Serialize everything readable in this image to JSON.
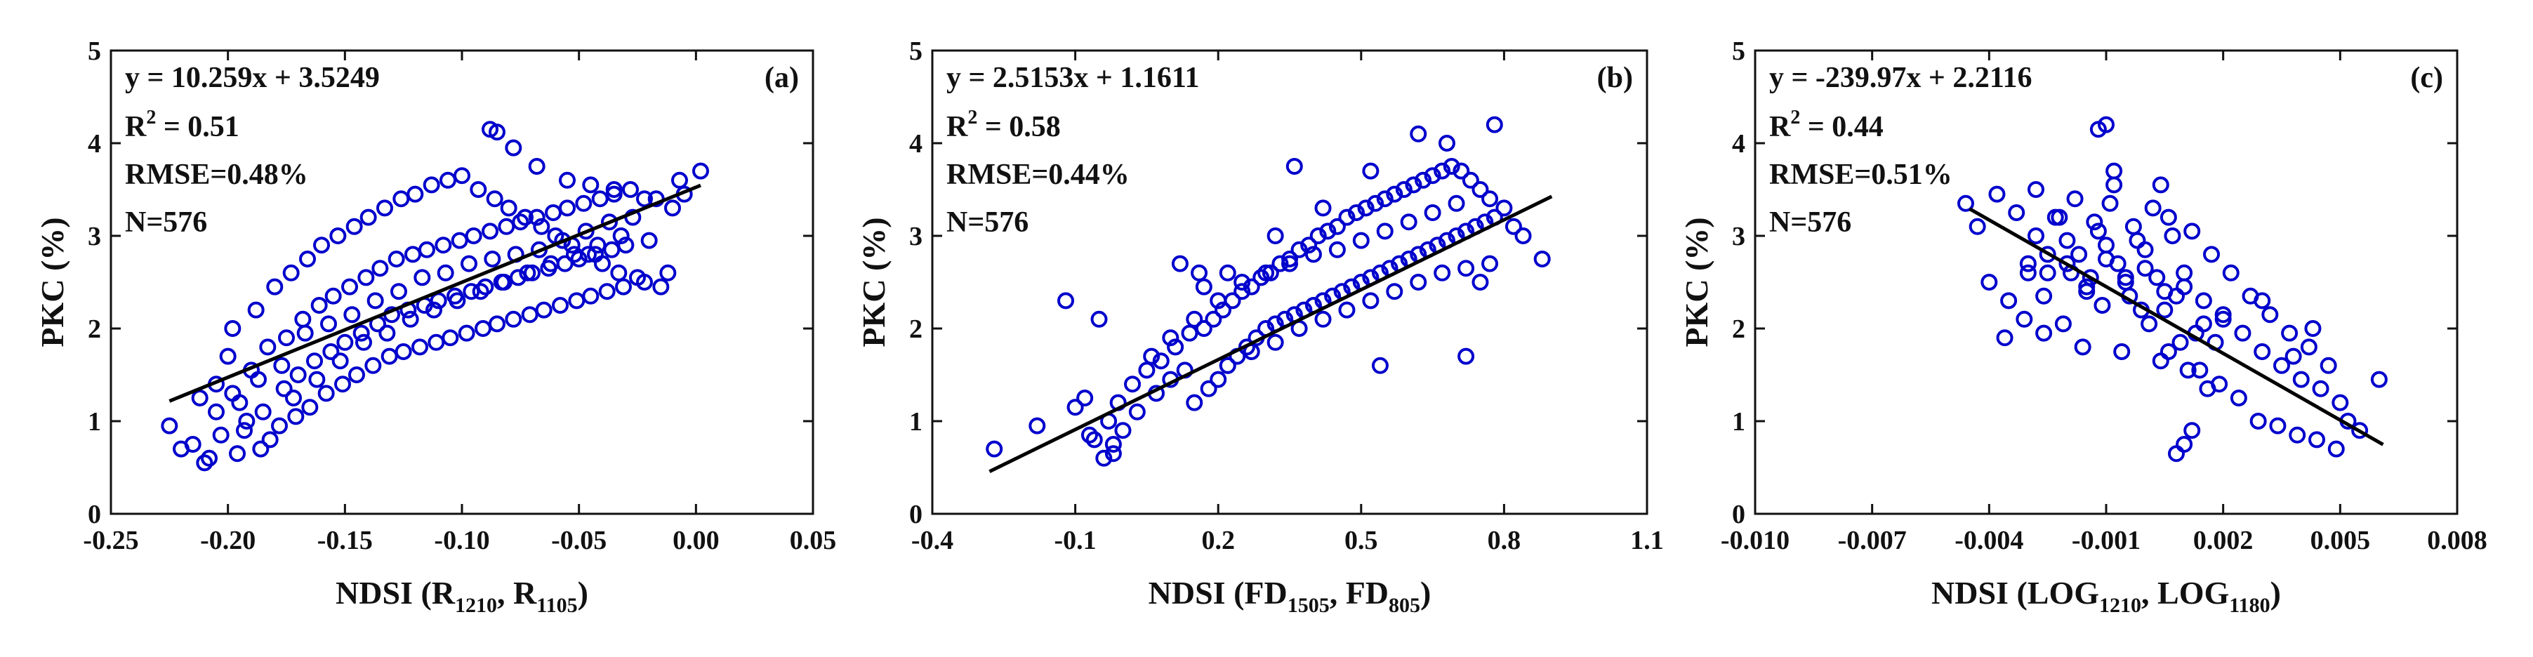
{
  "chart_data": [
    {
      "type": "scatter",
      "panel_label": "(a)",
      "xlabel": {
        "base": "NDSI (R",
        "sub1": "1210",
        "mid": ", R",
        "sub2": "1105",
        "end": ")"
      },
      "ylabel": "PKC (%)",
      "xlim": [
        -0.25,
        0.05
      ],
      "ylim": [
        0,
        5
      ],
      "xticks": [
        -0.25,
        -0.2,
        -0.15,
        -0.1,
        -0.05,
        0.0,
        0.05
      ],
      "xticklabels": [
        "-0.25",
        "-0.20",
        "-0.15",
        "-0.10",
        "-0.05",
        "0.00",
        "0.05"
      ],
      "yticks": [
        0,
        1,
        2,
        3,
        4,
        5
      ],
      "yticklabels": [
        "0",
        "1",
        "2",
        "3",
        "4",
        "5"
      ],
      "annotations": {
        "equation": "y = 10.259x + 3.5249",
        "r2_base": "R",
        "r2_sup": "2",
        "r2_value": " = 0.51",
        "rmse": "RMSE=0.48%",
        "n": "N=576"
      },
      "fit": {
        "slope": 10.259,
        "intercept": 3.5249,
        "x_range": [
          -0.225,
          0.002
        ]
      },
      "series": [
        {
          "marker": "open-circle",
          "color": "#0000cc",
          "x": [
            -0.225,
            -0.22,
            -0.215,
            -0.212,
            -0.21,
            -0.208,
            -0.205,
            -0.203,
            -0.2,
            -0.198,
            -0.196,
            -0.195,
            -0.193,
            -0.19,
            -0.188,
            -0.186,
            -0.185,
            -0.183,
            -0.18,
            -0.178,
            -0.176,
            -0.175,
            -0.173,
            -0.171,
            -0.17,
            -0.168,
            -0.166,
            -0.165,
            -0.163,
            -0.161,
            -0.16,
            -0.158,
            -0.156,
            -0.155,
            -0.153,
            -0.151,
            -0.15,
            -0.148,
            -0.146,
            -0.145,
            -0.143,
            -0.141,
            -0.14,
            -0.138,
            -0.136,
            -0.135,
            -0.133,
            -0.131,
            -0.13,
            -0.128,
            -0.126,
            -0.125,
            -0.123,
            -0.121,
            -0.12,
            -0.118,
            -0.116,
            -0.115,
            -0.113,
            -0.111,
            -0.11,
            -0.108,
            -0.106,
            -0.105,
            -0.103,
            -0.101,
            -0.1,
            -0.098,
            -0.096,
            -0.095,
            -0.093,
            -0.091,
            -0.09,
            -0.088,
            -0.086,
            -0.085,
            -0.083,
            -0.081,
            -0.08,
            -0.078,
            -0.076,
            -0.075,
            -0.073,
            -0.071,
            -0.07,
            -0.068,
            -0.066,
            -0.065,
            -0.063,
            -0.061,
            -0.06,
            -0.058,
            -0.056,
            -0.055,
            -0.053,
            -0.051,
            -0.05,
            -0.048,
            -0.046,
            -0.045,
            -0.043,
            -0.041,
            -0.04,
            -0.038,
            -0.036,
            -0.035,
            -0.033,
            -0.031,
            -0.03,
            -0.028,
            -0.025,
            -0.022,
            -0.02,
            -0.017,
            -0.015,
            -0.012,
            -0.01,
            -0.007,
            -0.005,
            0.002,
            -0.205,
            -0.198,
            -0.192,
            -0.187,
            -0.182,
            -0.177,
            -0.172,
            -0.167,
            -0.162,
            -0.157,
            -0.152,
            -0.147,
            -0.142,
            -0.137,
            -0.132,
            -0.127,
            -0.122,
            -0.117,
            -0.112,
            -0.107,
            -0.102,
            -0.097,
            -0.092,
            -0.087,
            -0.082,
            -0.077,
            -0.072,
            -0.067,
            -0.062,
            -0.057,
            -0.052,
            -0.047,
            -0.042,
            -0.037,
            -0.032,
            -0.027,
            -0.088,
            -0.085,
            -0.078,
            -0.068,
            -0.055,
            -0.045,
            -0.035,
            -0.022
          ],
          "y": [
            0.95,
            0.7,
            0.75,
            1.25,
            0.55,
            0.6,
            1.4,
            0.85,
            1.7,
            2.0,
            0.65,
            1.2,
            0.9,
            1.55,
            2.2,
            0.7,
            1.1,
            1.8,
            2.45,
            0.95,
            1.35,
            1.9,
            2.6,
            1.05,
            1.5,
            2.1,
            2.75,
            1.15,
            1.65,
            2.25,
            2.9,
            1.3,
            1.75,
            2.35,
            3.0,
            1.4,
            1.85,
            2.45,
            3.1,
            1.5,
            1.95,
            2.55,
            3.2,
            1.6,
            2.05,
            2.65,
            3.3,
            1.7,
            2.15,
            2.75,
            3.4,
            1.75,
            2.2,
            2.8,
            3.45,
            1.8,
            2.25,
            2.85,
            3.55,
            1.85,
            2.3,
            2.9,
            3.6,
            1.9,
            2.35,
            2.95,
            3.65,
            1.95,
            2.4,
            3.0,
            3.5,
            2.0,
            2.45,
            3.05,
            3.4,
            2.05,
            2.5,
            3.1,
            3.3,
            2.1,
            2.55,
            3.15,
            3.2,
            2.15,
            2.6,
            3.2,
            3.1,
            2.2,
            2.65,
            3.25,
            3.0,
            2.25,
            2.7,
            3.3,
            2.9,
            2.3,
            2.75,
            3.35,
            2.8,
            2.35,
            2.8,
            3.4,
            2.7,
            2.4,
            2.85,
            3.45,
            2.6,
            2.45,
            2.9,
            3.5,
            2.55,
            2.5,
            2.95,
            3.4,
            2.45,
            2.6,
            3.3,
            3.6,
            3.45,
            3.7,
            1.1,
            1.3,
            1.0,
            1.45,
            0.8,
            1.6,
            1.25,
            1.95,
            1.45,
            2.05,
            1.65,
            2.15,
            1.85,
            2.3,
            1.95,
            2.4,
            2.1,
            2.55,
            2.2,
            2.6,
            2.3,
            2.7,
            2.4,
            2.75,
            2.5,
            2.8,
            2.6,
            2.85,
            2.7,
            2.95,
            2.8,
            3.05,
            2.9,
            3.15,
            3.0,
            3.2,
            4.15,
            4.12,
            3.95,
            3.75,
            3.6,
            3.55,
            3.5,
            3.4
          ]
        }
      ]
    },
    {
      "type": "scatter",
      "panel_label": "(b)",
      "xlabel": {
        "base": "NDSI (FD",
        "sub1": "1505",
        "mid": ", FD",
        "sub2": "805",
        "end": ")"
      },
      "ylabel": "PKC (%)",
      "xlim": [
        -0.4,
        1.1
      ],
      "ylim": [
        0,
        5
      ],
      "xticks": [
        -0.4,
        -0.1,
        0.2,
        0.5,
        0.8,
        1.1
      ],
      "xticklabels": [
        "-0.4",
        "-0.1",
        "0.2",
        "0.5",
        "0.8",
        "1.1"
      ],
      "yticks": [
        0,
        1,
        2,
        3,
        4,
        5
      ],
      "yticklabels": [
        "0",
        "1",
        "2",
        "3",
        "4",
        "5"
      ],
      "annotations": {
        "equation": "y = 2.5153x + 1.1611",
        "r2_base": "R",
        "r2_sup": "2",
        "r2_value": " = 0.58",
        "rmse": "RMSE=0.44%",
        "n": "N=576"
      },
      "fit": {
        "slope": 2.5153,
        "intercept": 1.1611,
        "x_range": [
          -0.28,
          0.9
        ]
      },
      "series": [
        {
          "marker": "open-circle",
          "color": "#0000cc",
          "x": [
            -0.27,
            -0.18,
            -0.12,
            -0.1,
            -0.08,
            -0.06,
            -0.05,
            -0.04,
            -0.03,
            -0.02,
            -0.01,
            0.0,
            0.02,
            0.03,
            0.05,
            0.07,
            0.08,
            0.1,
            0.11,
            0.13,
            0.14,
            0.15,
            0.17,
            0.18,
            0.19,
            0.2,
            0.21,
            0.22,
            0.23,
            0.24,
            0.25,
            0.26,
            0.27,
            0.28,
            0.29,
            0.3,
            0.31,
            0.32,
            0.33,
            0.34,
            0.35,
            0.36,
            0.37,
            0.38,
            0.39,
            0.4,
            0.41,
            0.42,
            0.43,
            0.44,
            0.45,
            0.46,
            0.47,
            0.48,
            0.49,
            0.5,
            0.51,
            0.52,
            0.53,
            0.54,
            0.55,
            0.56,
            0.57,
            0.58,
            0.59,
            0.6,
            0.61,
            0.62,
            0.63,
            0.64,
            0.65,
            0.66,
            0.67,
            0.68,
            0.69,
            0.7,
            0.71,
            0.72,
            0.73,
            0.74,
            0.75,
            0.76,
            0.77,
            0.78,
            0.8,
            0.82,
            0.84,
            0.88,
            0.1,
            0.15,
            0.2,
            0.25,
            0.3,
            0.35,
            0.4,
            0.45,
            0.5,
            0.55,
            0.6,
            0.65,
            0.7,
            0.75,
            0.22,
            0.27,
            0.32,
            0.37,
            0.42,
            0.47,
            0.52,
            0.57,
            0.62,
            0.67,
            0.72,
            0.77,
            0.12,
            0.17,
            0.22,
            0.32,
            0.42,
            0.52,
            0.62,
            0.72,
            0.36,
            0.54,
            0.68,
            0.78,
            -0.02,
            -0.07,
            0.06,
            0.16
          ],
          "y": [
            0.7,
            0.95,
            2.3,
            1.15,
            1.25,
            0.8,
            2.1,
            0.6,
            1.0,
            0.75,
            1.2,
            0.9,
            1.4,
            1.1,
            1.55,
            1.3,
            1.65,
            1.45,
            1.8,
            1.55,
            1.95,
            1.2,
            2.0,
            1.35,
            2.1,
            1.45,
            2.2,
            1.6,
            2.3,
            1.7,
            2.4,
            1.8,
            2.45,
            1.9,
            2.55,
            2.0,
            2.6,
            2.05,
            2.7,
            2.1,
            2.75,
            2.15,
            2.85,
            2.2,
            2.9,
            2.25,
            3.0,
            2.3,
            3.05,
            2.35,
            3.1,
            2.4,
            3.2,
            2.45,
            3.25,
            2.5,
            3.3,
            2.55,
            3.35,
            2.6,
            3.4,
            2.65,
            3.45,
            2.7,
            3.5,
            2.75,
            3.55,
            2.8,
            3.6,
            2.85,
            3.65,
            2.9,
            3.7,
            2.95,
            3.75,
            3.0,
            3.7,
            3.05,
            3.6,
            3.1,
            3.5,
            3.15,
            3.4,
            3.2,
            3.3,
            3.1,
            3.0,
            2.75,
            1.9,
            2.1,
            2.3,
            2.5,
            2.6,
            2.7,
            2.8,
            2.85,
            2.95,
            3.05,
            3.15,
            3.25,
            3.35,
            2.5,
            1.6,
            1.75,
            1.85,
            2.0,
            2.1,
            2.2,
            2.3,
            2.4,
            2.5,
            2.6,
            2.65,
            2.7,
            2.7,
            2.45,
            2.6,
            3.0,
            3.3,
            3.7,
            4.1,
            1.7,
            3.75,
            1.6,
            4.0,
            4.2,
            0.65,
            0.85,
            1.7,
            2.6
          ]
        }
      ]
    },
    {
      "type": "scatter",
      "panel_label": "(c)",
      "xlabel": {
        "base": "NDSI (LOG",
        "sub1": "1210",
        "mid": ", LOG",
        "sub2": "1180",
        "end": ")"
      },
      "ylabel": "PKC (%)",
      "xlim": [
        -0.01,
        0.008
      ],
      "ylim": [
        0,
        5
      ],
      "xticks": [
        -0.01,
        -0.007,
        -0.004,
        -0.001,
        0.002,
        0.005,
        0.008
      ],
      "xticklabels": [
        "-0.010",
        "-0.007",
        "-0.004",
        "-0.001",
        "0.002",
        "0.005",
        "0.008"
      ],
      "yticks": [
        0,
        1,
        2,
        3,
        4,
        5
      ],
      "yticklabels": [
        "0",
        "1",
        "2",
        "3",
        "4",
        "5"
      ],
      "annotations": {
        "equation": "y = -239.97x + 2.2116",
        "r2_base": "R",
        "r2_sup": "2",
        "r2_value": " = 0.44",
        "rmse": "RMSE=0.51%",
        "n": "N=576"
      },
      "fit": {
        "slope": -239.97,
        "intercept": 2.2116,
        "x_range": [
          -0.0045,
          0.0061
        ]
      },
      "series": [
        {
          "marker": "open-circle",
          "color": "#0000cc",
          "x": [
            -0.0046,
            -0.0043,
            -0.004,
            -0.0038,
            -0.0036,
            -0.0035,
            -0.0033,
            -0.0031,
            -0.003,
            -0.0028,
            -0.0026,
            -0.0025,
            -0.0023,
            -0.0021,
            -0.002,
            -0.0018,
            -0.0016,
            -0.0015,
            -0.0013,
            -0.0011,
            -0.001,
            -0.0008,
            -0.0006,
            -0.0005,
            -0.0003,
            -0.0001,
            0.0,
            0.0002,
            0.0004,
            0.0005,
            0.0007,
            0.0009,
            0.001,
            0.0012,
            0.0014,
            0.0015,
            0.0017,
            0.0019,
            0.002,
            0.0022,
            0.0024,
            0.0025,
            0.0027,
            0.0029,
            0.003,
            0.0032,
            0.0034,
            0.0035,
            0.0037,
            0.0039,
            0.004,
            0.0042,
            0.0044,
            0.0045,
            0.0047,
            0.0049,
            0.005,
            0.0052,
            0.0055,
            0.006,
            -0.003,
            -0.0025,
            -0.002,
            -0.0015,
            -0.001,
            -0.0005,
            0.0,
            0.0005,
            0.001,
            0.0015,
            0.002,
            -0.0028,
            -0.0022,
            -0.0017,
            -0.0012,
            -0.0007,
            -0.0002,
            0.0003,
            0.0008,
            0.0013,
            0.0018,
            -0.0026,
            -0.0019,
            -0.0014,
            -0.0009,
            -0.0004,
            0.0001,
            0.0006,
            0.0011,
            0.0016,
            -0.0012,
            -0.001,
            -0.0008,
            0.0004,
            0.0006,
            0.0008,
            0.001,
            0.0012,
            0.003,
            0.0038,
            0.0043
          ],
          "y": [
            3.35,
            3.1,
            2.5,
            3.45,
            1.9,
            2.3,
            3.25,
            2.1,
            2.6,
            3.5,
            1.95,
            2.8,
            3.2,
            2.05,
            2.7,
            3.4,
            1.8,
            2.45,
            3.15,
            2.25,
            2.9,
            3.55,
            1.75,
            2.55,
            3.1,
            2.2,
            2.85,
            3.3,
            1.65,
            2.4,
            3.0,
            1.85,
            2.6,
            3.05,
            1.55,
            2.3,
            2.8,
            1.4,
            2.15,
            2.6,
            1.25,
            1.95,
            2.35,
            1.0,
            1.75,
            2.15,
            0.95,
            1.6,
            1.95,
            0.85,
            1.45,
            1.8,
            0.8,
            1.35,
            1.6,
            0.7,
            1.2,
            1.0,
            0.9,
            1.45,
            2.7,
            2.6,
            2.95,
            2.4,
            2.75,
            2.5,
            2.65,
            2.2,
            2.45,
            2.05,
            2.1,
            3.0,
            3.2,
            2.8,
            3.05,
            2.7,
            2.95,
            2.55,
            2.35,
            1.95,
            1.85,
            2.35,
            2.6,
            2.55,
            3.35,
            2.35,
            2.05,
            1.75,
            1.55,
            1.35,
            4.15,
            4.2,
            3.7,
            3.55,
            3.2,
            0.65,
            0.75,
            0.9,
            2.3,
            1.7,
            2.0
          ]
        }
      ]
    }
  ]
}
